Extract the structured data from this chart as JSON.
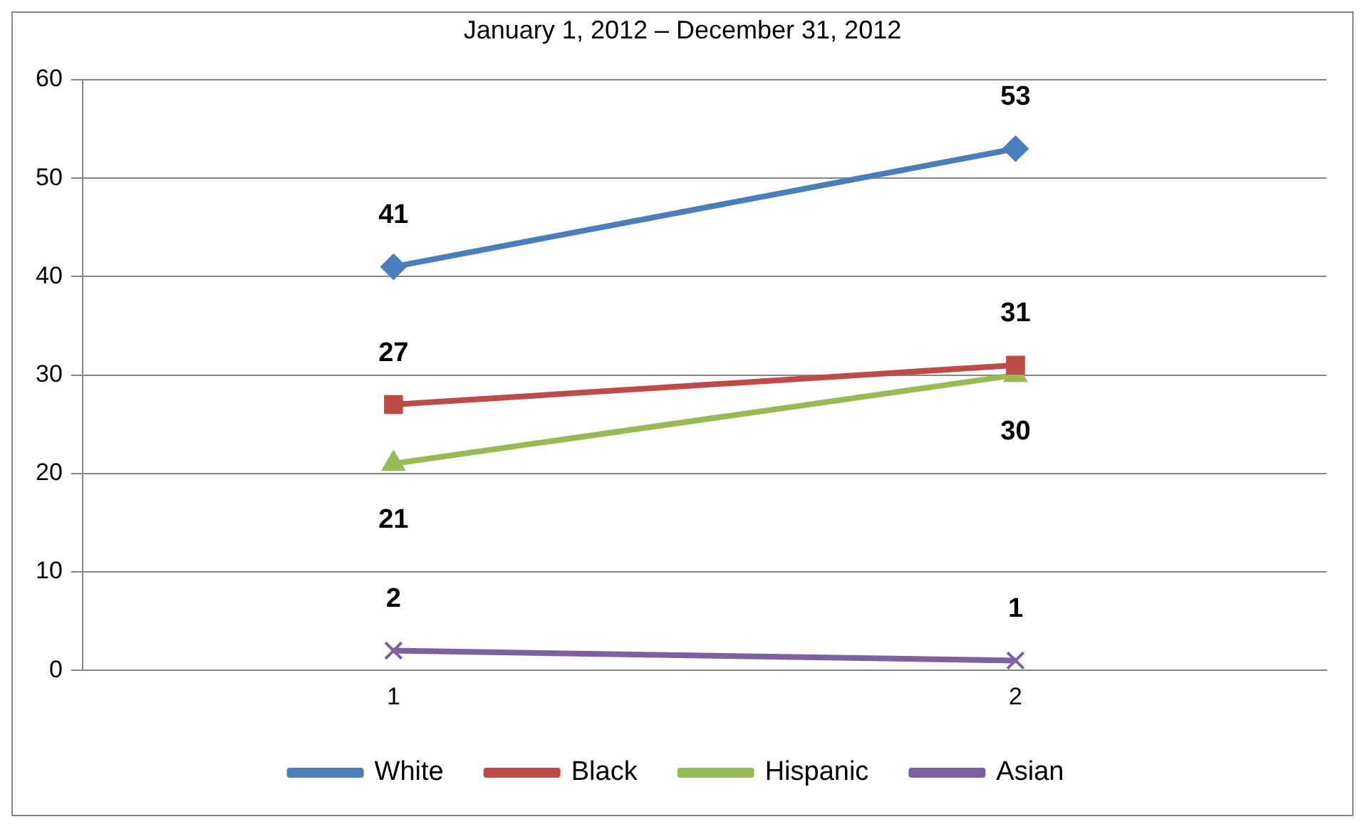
{
  "chart_data": {
    "type": "line",
    "title": "January 1, 2012 – December 31, 2012",
    "categories": [
      "1",
      "2"
    ],
    "series": [
      {
        "name": "White",
        "color": "#4a7ebb",
        "values": [
          41,
          53
        ],
        "marker": "diamond"
      },
      {
        "name": "Black",
        "color": "#be4b48",
        "values": [
          27,
          31
        ],
        "marker": "square"
      },
      {
        "name": "Hispanic",
        "color": "#98b954",
        "values": [
          21,
          30
        ],
        "marker": "triangle"
      },
      {
        "name": "Asian",
        "color": "#7d60a0",
        "values": [
          2,
          1
        ],
        "marker": "cross"
      }
    ],
    "ylim": [
      0,
      60
    ],
    "yticks": [
      0,
      10,
      20,
      30,
      40,
      50,
      60
    ],
    "grid": "y",
    "legend": "bottom",
    "data_labels": true,
    "line_style": "solid"
  }
}
